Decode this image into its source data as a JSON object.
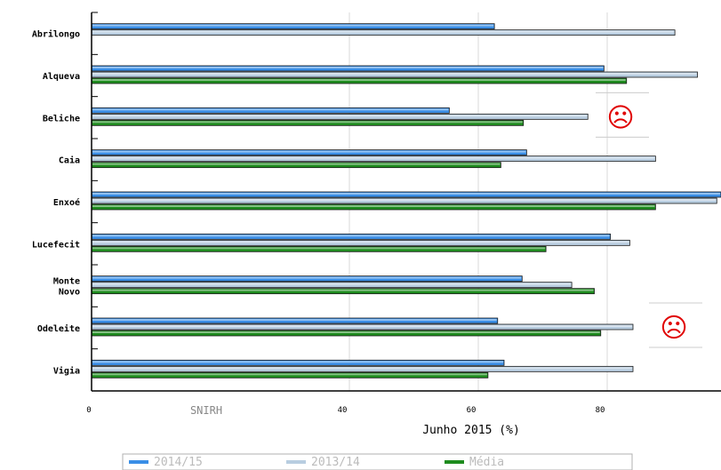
{
  "chart_data": {
    "type": "bar",
    "orientation": "horizontal",
    "categories": [
      "Abrilongo",
      "Alqueva",
      "Beliche",
      "Caia",
      "Enxoé",
      "Lucefecit",
      "Monte\nNovo",
      "Odeleite",
      "Vigia"
    ],
    "series": [
      {
        "name": "2014/15",
        "color": "#3a8ee6",
        "values": [
          62.5,
          79.5,
          55.5,
          67.5,
          98.0,
          80.5,
          66.8,
          63.0,
          64.0
        ]
      },
      {
        "name": "2013/14",
        "color": "#b8cde0",
        "values": [
          90.5,
          94.0,
          77.0,
          87.5,
          97.0,
          83.5,
          74.5,
          84.0,
          84.0
        ]
      },
      {
        "name": "Média",
        "color": "#1e8c1e",
        "values": [
          0,
          83.0,
          67.0,
          63.5,
          87.5,
          70.5,
          78.0,
          79.0,
          61.5
        ]
      }
    ],
    "xticks": [
      "0",
      "40",
      "60",
      "80"
    ],
    "xlabel": "Junho 2015 (%)",
    "xlim": [
      0,
      97
    ],
    "watermark": "SNIRH",
    "legend_position": "bottom",
    "annotations": [
      {
        "symbol": "☹",
        "near": "Beliche"
      },
      {
        "symbol": "☹",
        "near": "Odeleite"
      }
    ]
  }
}
